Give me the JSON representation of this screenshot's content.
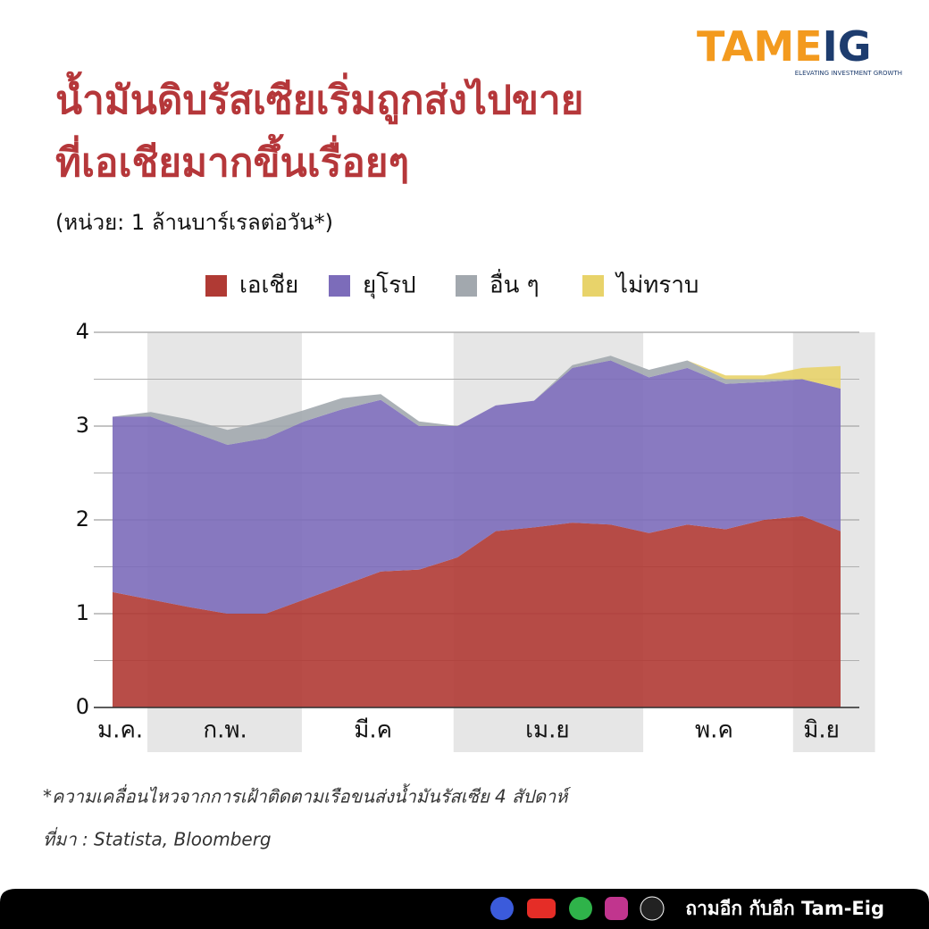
{
  "brand": {
    "part1": "TAME",
    "part2": "IG",
    "tagline": "ELEVATING INVESTMENT GROWTH"
  },
  "chart_data": {
    "type": "stacked_area",
    "title": [
      "น้ำมันดิบรัสเซียเริ่มถูกส่งไปขาย",
      "ที่เอเชียมากขึ้นเรื่อยๆ"
    ],
    "subtitle": "(หน่วย: 1 ล้านบาร์เรลต่อวัน*)",
    "x": [
      0,
      1,
      2,
      3,
      4,
      5,
      6,
      7,
      8,
      9,
      10,
      11,
      12,
      13,
      14,
      15,
      16,
      17,
      18,
      19
    ],
    "xlim": [
      0,
      19
    ],
    "xticks": [
      {
        "value": 0.2,
        "label": "ม.ค."
      },
      {
        "value": 2.94,
        "label": "ก.พ."
      },
      {
        "value": 6.8,
        "label": "มี.ค"
      },
      {
        "value": 11.35,
        "label": "เม.ย"
      },
      {
        "value": 15.7,
        "label": "พ.ค"
      },
      {
        "value": 18.5,
        "label": "มิ.ย"
      }
    ],
    "shaded_ranges": [
      [
        0.91,
        4.94
      ],
      [
        8.9,
        13.85
      ],
      [
        17.76,
        19.9
      ]
    ],
    "ylim": [
      0,
      4
    ],
    "yticks": [
      0,
      1,
      2,
      3,
      4
    ],
    "minor_yticks": [
      0.5,
      1.5,
      2.5,
      3.5
    ],
    "grid": true,
    "legend": "top",
    "series": [
      {
        "name": "เอเชีย",
        "color": "#b03a34",
        "values": [
          1.23,
          1.15,
          1.07,
          1.0,
          1.0,
          1.15,
          1.3,
          1.45,
          1.47,
          1.6,
          1.88,
          1.92,
          1.97,
          1.95,
          1.86,
          1.95,
          1.9,
          2.0,
          2.04,
          1.88
        ]
      },
      {
        "name": "ยุโรป",
        "color": "#7c6cba",
        "values": [
          1.87,
          1.95,
          1.88,
          1.8,
          1.87,
          1.9,
          1.88,
          1.83,
          1.53,
          1.4,
          1.34,
          1.35,
          1.65,
          1.75,
          1.66,
          1.67,
          1.55,
          1.47,
          1.46,
          1.52
        ]
      },
      {
        "name": "อื่น ๆ",
        "color": "#a2a8ae",
        "values": [
          0,
          0.05,
          0.12,
          0.16,
          0.18,
          0.12,
          0.12,
          0.06,
          0.05,
          0,
          0,
          0,
          0.03,
          0.05,
          0.08,
          0.08,
          0.05,
          0.03,
          0,
          0
        ]
      },
      {
        "name": "ไม่ทราบ",
        "color": "#e8d36a",
        "values": [
          0,
          0,
          0,
          0,
          0,
          0,
          0,
          0,
          0,
          0,
          0,
          0,
          0,
          0,
          0,
          0,
          0.04,
          0.04,
          0.12,
          0.24
        ]
      }
    ],
    "footnote": "*ความเคลื่อนไหวจากการเฝ้าติดตามเรือขนส่งน้ำมันรัสเซีย 4 สัปดาห์",
    "source": "ที่มา : Statista, Bloomberg"
  },
  "footer": "ถามอีก กับอีก Tam-Eig"
}
